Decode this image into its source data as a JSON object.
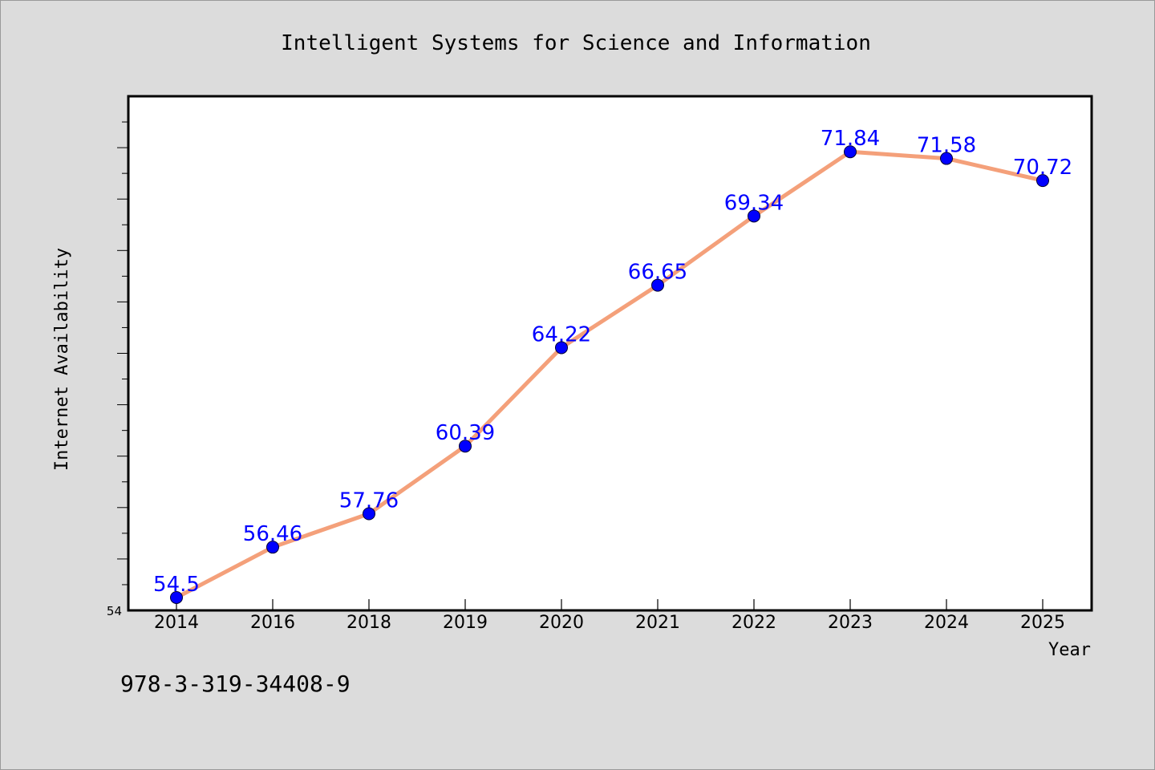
{
  "chart_data": {
    "type": "line",
    "title": "Intelligent Systems for Science and Information",
    "xlabel": "Year",
    "ylabel": "Internet Availability",
    "categories": [
      "2014",
      "2016",
      "2018",
      "2019",
      "2020",
      "2021",
      "2022",
      "2023",
      "2024",
      "2025"
    ],
    "series": [
      {
        "values": [
          54.5,
          56.46,
          57.76,
          60.39,
          64.22,
          66.65,
          69.34,
          71.84,
          71.58,
          70.72
        ],
        "data_labels": [
          "54.5",
          "56.46",
          "57.76",
          "60.39",
          "64.22",
          "66.65",
          "69.34",
          "71.84",
          "71.58",
          "70.72"
        ],
        "line_color": "#f4a07a",
        "marker_color": "#0000ff"
      }
    ],
    "y_tick_labels": [
      "54"
    ],
    "ylim": [
      54,
      74
    ],
    "grid": false,
    "legend": "none"
  },
  "footer": {
    "isbn": "978-3-319-34408-9"
  },
  "colors": {
    "background": "#dcdcdc",
    "plot_background": "#ffffff",
    "line": "#f4a07a",
    "marker": "#0000ff",
    "data_label": "#0000ff"
  }
}
